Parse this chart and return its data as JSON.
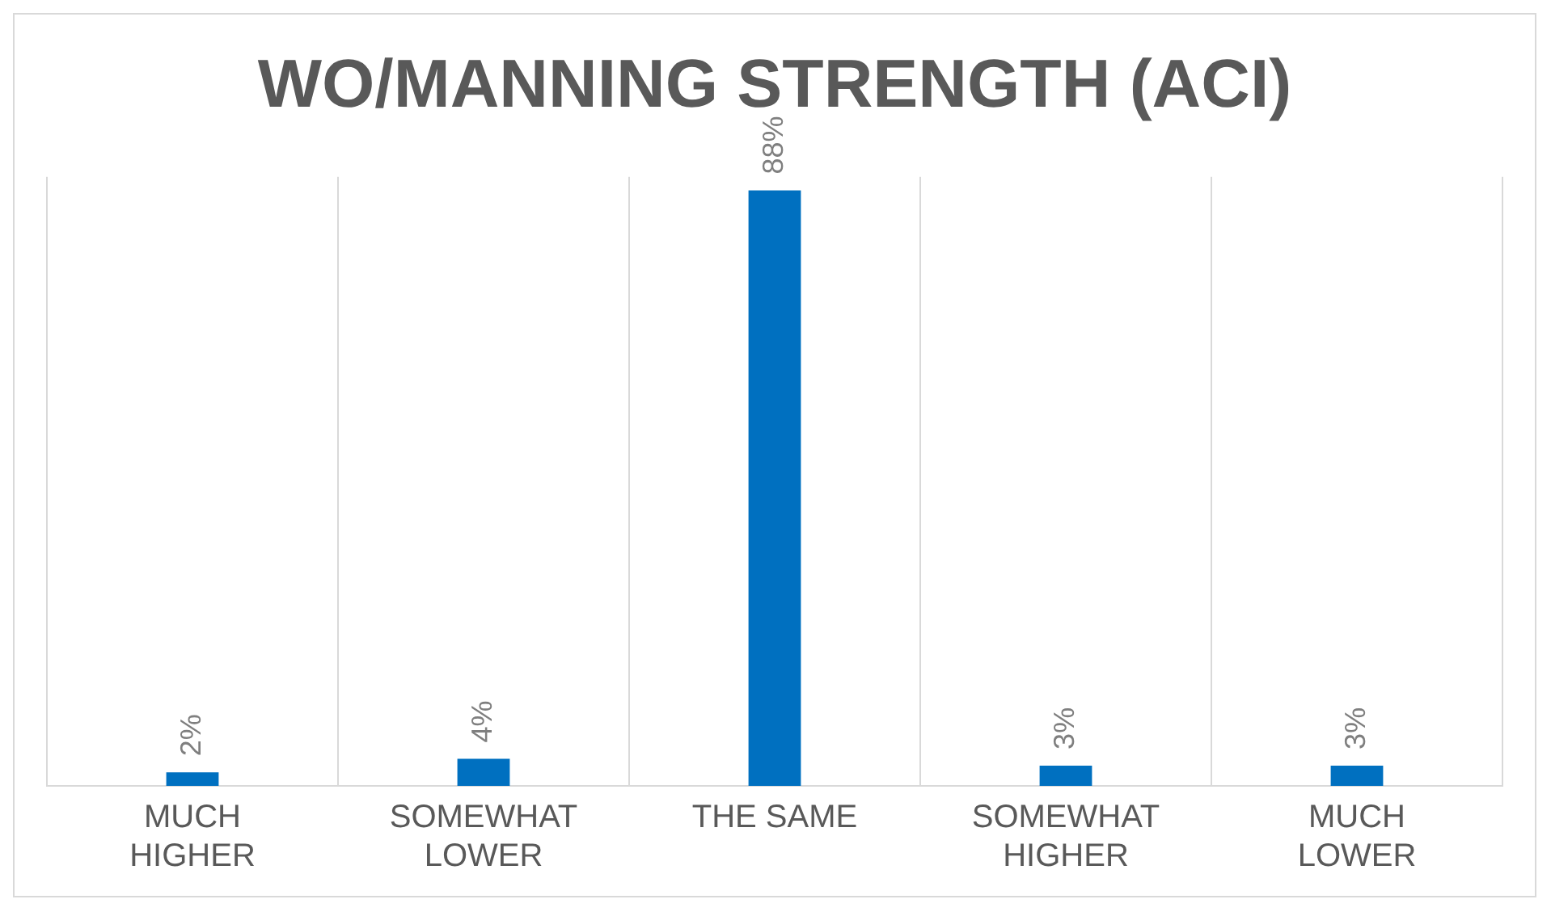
{
  "chart_data": {
    "type": "bar",
    "title": "WO/MANNING STRENGTH (ACI)",
    "categories": [
      "MUCH HIGHER",
      "SOMEWHAT LOWER",
      "THE SAME",
      "SOMEWHAT HIGHER",
      "MUCH LOWER"
    ],
    "values": [
      2,
      4,
      88,
      3,
      3
    ],
    "value_labels": [
      "2%",
      "4%",
      "88%",
      "3%",
      "3%"
    ],
    "color": "#0070c0",
    "grid": "x",
    "legend": false
  }
}
